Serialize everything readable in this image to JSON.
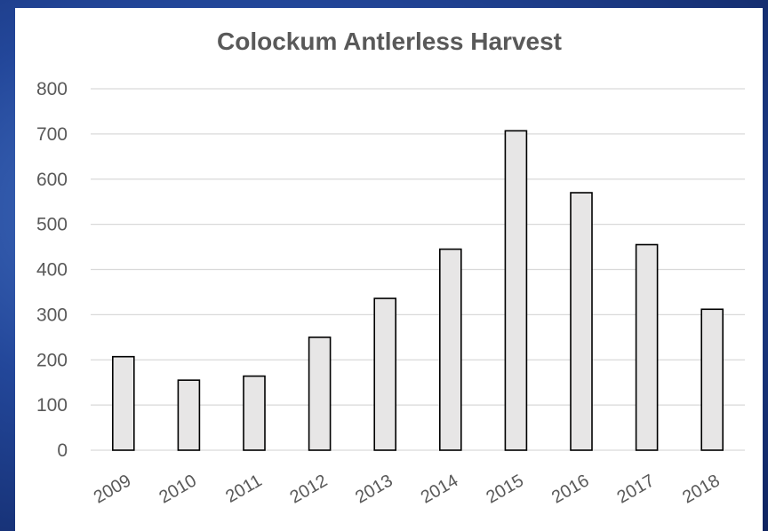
{
  "chart_data": {
    "type": "bar",
    "title": "Colockum Antlerless Harvest",
    "xlabel": "",
    "ylabel": "",
    "categories": [
      "2009",
      "2010",
      "2011",
      "2012",
      "2013",
      "2014",
      "2015",
      "2016",
      "2017",
      "2018"
    ],
    "values": [
      207,
      155,
      164,
      250,
      336,
      445,
      707,
      570,
      455,
      312
    ],
    "ylim": [
      0,
      800
    ],
    "yticks": [
      0,
      100,
      200,
      300,
      400,
      500,
      600,
      700,
      800
    ],
    "grid": true,
    "legend": "none",
    "colors": {
      "bar_fill": "#e7e6e6",
      "bar_stroke": "#000000",
      "text": "#595959",
      "grid": "#d9d9d9"
    }
  }
}
